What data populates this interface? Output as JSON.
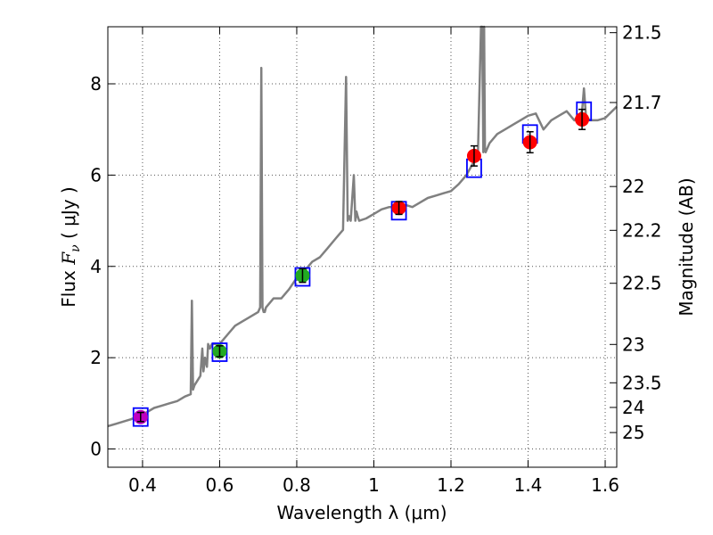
{
  "chart_data": {
    "type": "line",
    "title": "",
    "xlabel": "Wavelength  λ (μm)",
    "ylabel": "Flux  F_ν  ( μJy )",
    "ylabel_parts": {
      "pre": "Flux  ",
      "var": "F",
      "sub": "ν",
      "post": "  ( μJy )"
    },
    "y2label": "Magnitude (AB)",
    "xlim": [
      0.31,
      1.63
    ],
    "ylim": [
      -0.4,
      9.25
    ],
    "grid": true,
    "x_ticks": [
      0.4,
      0.6,
      0.8,
      1.0,
      1.2,
      1.4,
      1.6
    ],
    "x_tick_labels": [
      "0.4",
      "0.6",
      "0.8",
      "1",
      "1.2",
      "1.4",
      "1.6"
    ],
    "y_ticks": [
      0,
      2,
      4,
      6,
      8
    ],
    "y_tick_labels": [
      "0",
      "2",
      "4",
      "6",
      "8"
    ],
    "y2_ticks": [
      {
        "label": "21.5",
        "flux": 9.12
      },
      {
        "label": "21.7",
        "flux": 7.59
      },
      {
        "label": "22",
        "flux": 5.75
      },
      {
        "label": "22.2",
        "flux": 4.79
      },
      {
        "label": "22.5",
        "flux": 3.63
      },
      {
        "label": "23",
        "flux": 2.29
      },
      {
        "label": "23.5",
        "flux": 1.45
      },
      {
        "label": "24",
        "flux": 0.91
      },
      {
        "label": "25",
        "flux": 0.36
      }
    ],
    "colors": {
      "spectrum": "#808080",
      "model_box": "#0000ff",
      "errorbar": "#000000",
      "grid": "#555555"
    },
    "series": [
      {
        "name": "model spectrum",
        "kind": "line",
        "x": [
          0.31,
          0.33,
          0.35,
          0.37,
          0.39,
          0.41,
          0.43,
          0.45,
          0.47,
          0.49,
          0.51,
          0.525,
          0.528,
          0.531,
          0.535,
          0.55,
          0.555,
          0.558,
          0.562,
          0.567,
          0.57,
          0.575,
          0.58,
          0.6,
          0.62,
          0.64,
          0.66,
          0.68,
          0.7,
          0.705,
          0.708,
          0.711,
          0.714,
          0.717,
          0.72,
          0.74,
          0.76,
          0.78,
          0.8,
          0.82,
          0.84,
          0.86,
          0.88,
          0.9,
          0.92,
          0.928,
          0.932,
          0.936,
          0.94,
          0.948,
          0.952,
          0.955,
          0.958,
          0.962,
          0.98,
          1.0,
          1.02,
          1.04,
          1.06,
          1.08,
          1.1,
          1.12,
          1.14,
          1.16,
          1.18,
          1.2,
          1.22,
          1.24,
          1.26,
          1.27,
          1.278,
          1.281,
          1.284,
          1.286,
          1.288,
          1.29,
          1.3,
          1.32,
          1.34,
          1.36,
          1.38,
          1.4,
          1.42,
          1.44,
          1.46,
          1.48,
          1.5,
          1.52,
          1.54,
          1.545,
          1.55,
          1.56,
          1.58,
          1.6,
          1.63
        ],
        "y": [
          0.5,
          0.55,
          0.6,
          0.65,
          0.72,
          0.8,
          0.9,
          0.95,
          1.0,
          1.05,
          1.15,
          1.2,
          3.25,
          1.3,
          1.4,
          1.6,
          2.2,
          1.7,
          2.0,
          1.8,
          2.3,
          2.2,
          2.3,
          2.3,
          2.5,
          2.7,
          2.8,
          2.9,
          3.0,
          3.1,
          8.35,
          3.1,
          3.0,
          3.0,
          3.1,
          3.3,
          3.3,
          3.5,
          3.75,
          3.9,
          4.1,
          4.2,
          4.4,
          4.6,
          4.8,
          8.15,
          5.0,
          5.1,
          5.0,
          6.0,
          5.0,
          5.2,
          5.1,
          5.0,
          5.05,
          5.15,
          5.25,
          5.3,
          5.3,
          5.35,
          5.3,
          5.4,
          5.5,
          5.55,
          5.6,
          5.65,
          5.8,
          6.0,
          6.3,
          6.5,
          9.3,
          9.3,
          6.5,
          9.3,
          6.6,
          6.5,
          6.7,
          6.9,
          7.0,
          7.1,
          7.2,
          7.3,
          7.35,
          7.0,
          7.2,
          7.3,
          7.4,
          7.2,
          7.4,
          7.9,
          7.3,
          7.2,
          7.2,
          7.25,
          7.5
        ]
      },
      {
        "name": "model bandpass flux",
        "kind": "box",
        "x": [
          0.395,
          0.6,
          0.815,
          1.065,
          1.26,
          1.405,
          1.545
        ],
        "y": [
          0.7,
          2.12,
          3.77,
          5.22,
          6.15,
          6.9,
          7.4
        ]
      },
      {
        "name": "observed photometry",
        "kind": "point",
        "x": [
          0.395,
          0.6,
          0.815,
          1.065,
          1.26,
          1.405,
          1.54
        ],
        "y": [
          0.7,
          2.14,
          3.8,
          5.28,
          6.42,
          6.72,
          7.22
        ],
        "err": [
          0.1,
          0.12,
          0.15,
          0.14,
          0.22,
          0.23,
          0.22
        ],
        "colors": [
          "#bf00bf",
          "#22aa22",
          "#22aa22",
          "#ff0000",
          "#ff0000",
          "#ff0000",
          "#ff0000"
        ]
      }
    ]
  }
}
